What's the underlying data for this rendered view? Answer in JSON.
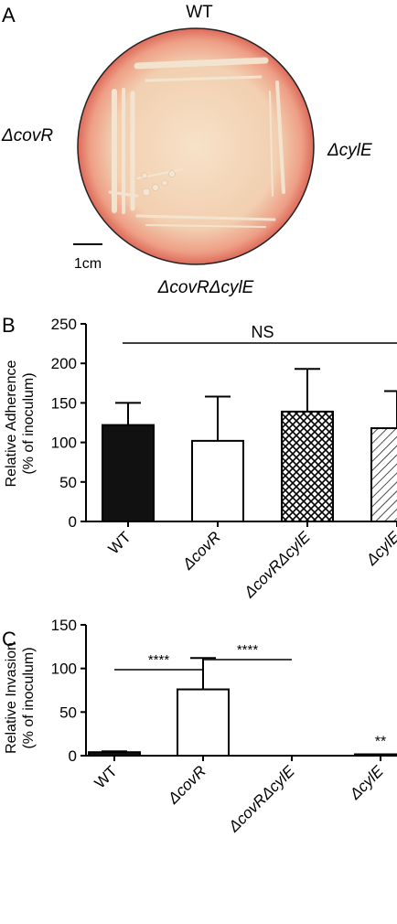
{
  "panel_a": {
    "label": "A",
    "top_label": "WT",
    "left_label": "ΔcovR",
    "right_label": "ΔcylE",
    "bottom_label": "ΔcovRΔcylE",
    "scale_bar_label": "1cm",
    "colors": {
      "agar_center": "#f6dcc2",
      "agar_rim": "#e37a66",
      "colony": "#f3e6d2"
    }
  },
  "chart_data": [
    {
      "type": "bar",
      "panel_label": "B",
      "categories": [
        "WT",
        "ΔcovR",
        "ΔcovRΔcylE",
        "ΔcylE"
      ],
      "values": [
        122,
        102,
        139,
        118
      ],
      "errors_upper": [
        150,
        158,
        193,
        165
      ],
      "ylabel": "Relative Adherence",
      "ylabel2": "(% of inoculum)",
      "ylim": [
        0,
        250
      ],
      "yticks": [
        0,
        50,
        100,
        150,
        200,
        250
      ],
      "bar_fills": [
        "solid-black",
        "white",
        "crosshatch",
        "diagonal-hatch"
      ],
      "annotations": [
        {
          "text": "NS",
          "from": 0,
          "to": 3
        }
      ],
      "grid": false,
      "legend": "none"
    },
    {
      "type": "bar",
      "panel_label": "C",
      "categories": [
        "WT",
        "ΔcovR",
        "ΔcovRΔcylE",
        "ΔcylE"
      ],
      "values": [
        4,
        76,
        0,
        0.5
      ],
      "errors_upper": [
        5,
        112,
        0,
        0.5
      ],
      "ylabel": "Relative Invasion",
      "ylabel2": "(% of inoculum)",
      "ylim": [
        0,
        150
      ],
      "yticks": [
        0,
        50,
        100,
        150
      ],
      "bar_fills": [
        "solid-black",
        "white",
        "white",
        "white"
      ],
      "annotations": [
        {
          "text": "****",
          "from": 0,
          "to": 1
        },
        {
          "text": "****",
          "from": 1,
          "to": 2
        },
        {
          "text": "**",
          "over": 3
        }
      ],
      "grid": false,
      "legend": "none"
    }
  ]
}
